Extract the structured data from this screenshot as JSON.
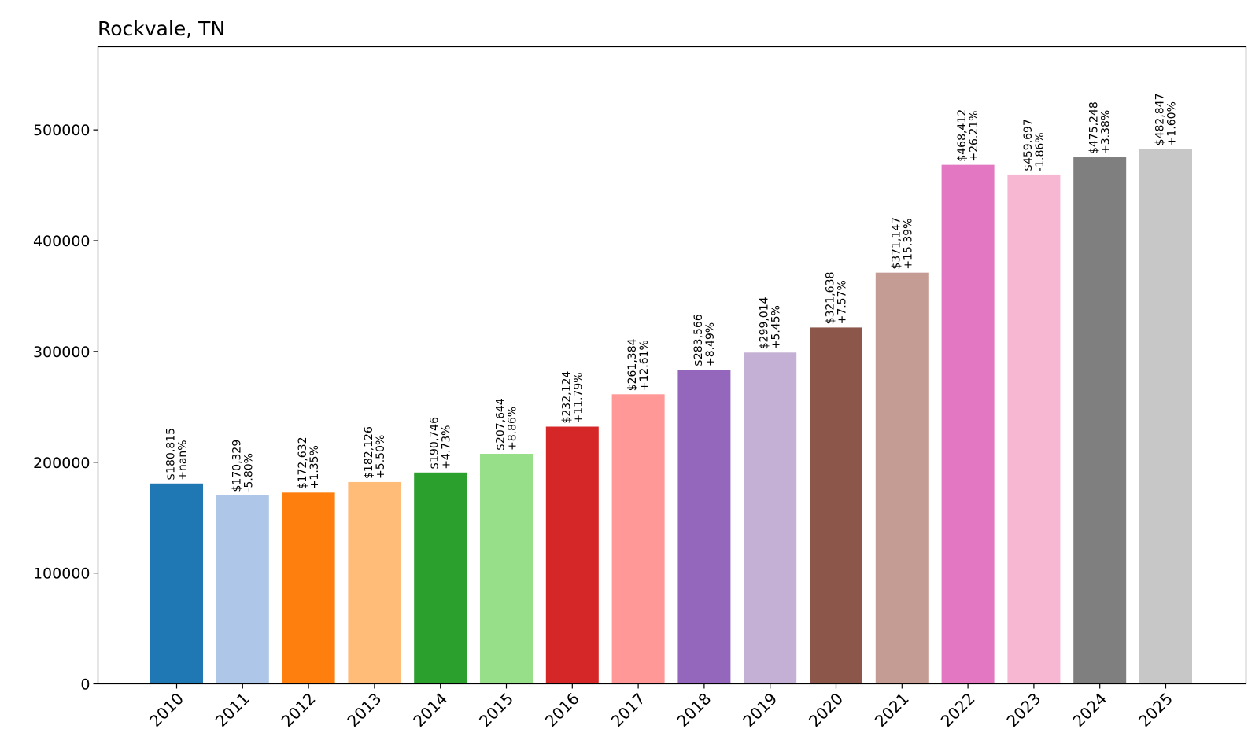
{
  "chart_data": {
    "type": "bar",
    "title": "Rockvale, TN",
    "xlabel": "",
    "ylabel": "",
    "ylim": [
      0,
      575000
    ],
    "yticks": [
      0,
      100000,
      200000,
      300000,
      400000,
      500000
    ],
    "ytick_labels": [
      "0",
      "100000",
      "200000",
      "300000",
      "400000",
      "500000"
    ],
    "grid": false,
    "categories": [
      "2010",
      "2011",
      "2012",
      "2013",
      "2014",
      "2015",
      "2016",
      "2017",
      "2018",
      "2019",
      "2020",
      "2021",
      "2022",
      "2023",
      "2024",
      "2025"
    ],
    "values": [
      180815,
      170329,
      172632,
      182126,
      190746,
      207644,
      232124,
      261384,
      283566,
      299014,
      321638,
      371147,
      468412,
      459697,
      475248,
      482847
    ],
    "value_labels": [
      "$180,815",
      "$170,329",
      "$172,632",
      "$182,126",
      "$190,746",
      "$207,644",
      "$232,124",
      "$261,384",
      "$283,566",
      "$299,014",
      "$321,638",
      "$371,147",
      "$468,412",
      "$459,697",
      "$475,248",
      "$482,847"
    ],
    "change_labels": [
      "+nan%",
      "-5.80%",
      "+1.35%",
      "+5.50%",
      "+4.73%",
      "+8.86%",
      "+11.79%",
      "+12.61%",
      "+8.49%",
      "+5.45%",
      "+7.57%",
      "+15.39%",
      "+26.21%",
      "-1.86%",
      "+3.38%",
      "+1.60%"
    ],
    "colors": [
      "#1f77b4",
      "#aec7e8",
      "#ff7f0e",
      "#ffbb78",
      "#2ca02c",
      "#98df8a",
      "#d62728",
      "#ff9896",
      "#9467bd",
      "#c5b0d5",
      "#8c564b",
      "#c49c94",
      "#e377c2",
      "#f7b6d2",
      "#7f7f7f",
      "#c7c7c7"
    ]
  }
}
